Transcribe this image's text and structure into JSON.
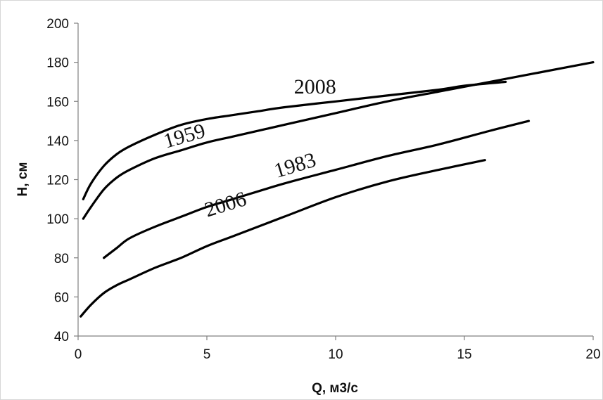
{
  "chart_data": {
    "type": "line",
    "title": "",
    "xlabel": "Q, м3/с",
    "ylabel": "H, см",
    "xlim": [
      0,
      20
    ],
    "ylim": [
      40,
      200
    ],
    "xticks": [
      0,
      5,
      10,
      15,
      20
    ],
    "yticks": [
      40,
      60,
      80,
      100,
      120,
      140,
      160,
      180,
      200
    ],
    "grid": false,
    "legend": "none",
    "line_color": "#000000",
    "series": [
      {
        "name": "2008",
        "x": [
          0.2,
          0.5,
          1.0,
          1.5,
          2.0,
          3.0,
          4.0,
          5.0,
          6.0,
          7.0,
          8.0,
          10.0,
          12.0,
          14.0,
          15.0,
          16.6
        ],
        "y": [
          110,
          118,
          127,
          133,
          137,
          143,
          148,
          151,
          153,
          155,
          157,
          160,
          163,
          166,
          168,
          170
        ]
      },
      {
        "name": "1959",
        "x": [
          0.2,
          0.5,
          1.0,
          1.5,
          2.0,
          3.0,
          4.0,
          5.0,
          6.0,
          8.0,
          10.0,
          12.0,
          14.0,
          16.0,
          18.0,
          20.0
        ],
        "y": [
          100,
          106,
          115,
          121,
          125,
          131,
          135,
          139,
          142,
          148,
          154,
          160,
          165,
          170,
          175,
          180
        ]
      },
      {
        "name": "1983",
        "x": [
          1.0,
          1.5,
          2.0,
          3.0,
          4.0,
          5.0,
          6.0,
          8.0,
          10.0,
          12.0,
          14.0,
          16.0,
          17.5
        ],
        "y": [
          80,
          85,
          90,
          96,
          101,
          106,
          110,
          118,
          125,
          132,
          138,
          145,
          150
        ]
      },
      {
        "name": "2006",
        "x": [
          0.1,
          0.5,
          1.0,
          1.5,
          2.0,
          3.0,
          4.0,
          5.0,
          6.0,
          8.0,
          10.0,
          12.0,
          14.0,
          15.8
        ],
        "y": [
          50,
          56,
          62,
          66,
          69,
          75,
          80,
          86,
          91,
          101,
          111,
          119,
          125,
          130
        ]
      }
    ],
    "annotations": [
      {
        "text": "2008",
        "x": 9.2,
        "y": 164,
        "rotate": 0
      },
      {
        "text": "1959",
        "x": 4.2,
        "y": 139,
        "rotate": -16
      },
      {
        "text": "1983",
        "x": 8.5,
        "y": 124,
        "rotate": -17
      },
      {
        "text": "2006",
        "x": 5.8,
        "y": 104,
        "rotate": -17
      }
    ]
  }
}
